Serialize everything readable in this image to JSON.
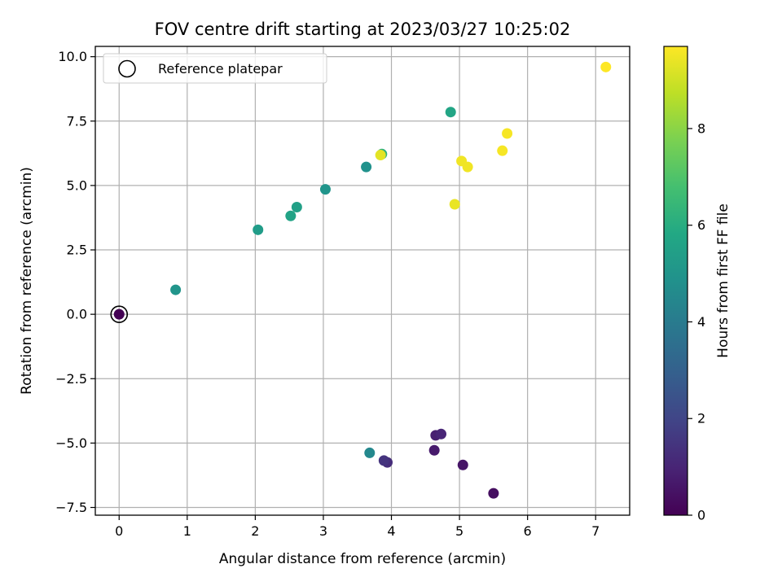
{
  "chart_data": {
    "type": "scatter",
    "title": "FOV centre drift starting at 2023/03/27 10:25:02",
    "xlabel": "Angular distance from reference (arcmin)",
    "ylabel": "Rotation from reference (arcmin)",
    "xlim": [
      -0.35,
      7.5
    ],
    "ylim": [
      -7.8,
      10.4
    ],
    "xticks": [
      0,
      1,
      2,
      3,
      4,
      5,
      6,
      7
    ],
    "xtick_labels": [
      "0",
      "1",
      "2",
      "3",
      "4",
      "5",
      "6",
      "7"
    ],
    "yticks": [
      -7.5,
      -5.0,
      -2.5,
      0.0,
      2.5,
      5.0,
      7.5,
      10.0
    ],
    "ytick_labels": [
      "−7.5",
      "−5.0",
      "−2.5",
      "0.0",
      "2.5",
      "5.0",
      "7.5",
      "10.0"
    ],
    "grid": true,
    "colormap": "viridis",
    "colorbar": {
      "label": "Hours from first FF file",
      "range": [
        0,
        9.7
      ],
      "ticks": [
        0,
        2,
        4,
        6,
        8
      ],
      "tick_labels": [
        "0",
        "2",
        "4",
        "6",
        "8"
      ]
    },
    "legend": {
      "placement": "top-left",
      "entries": [
        {
          "label": "Reference platepar",
          "marker": "open-circle"
        }
      ]
    },
    "reference_point": {
      "x": 0,
      "y": 0
    },
    "points": [
      {
        "x": 0.0,
        "y": 0.0,
        "hours": 0.0
      },
      {
        "x": 5.5,
        "y": -6.95,
        "hours": 0.35
      },
      {
        "x": 5.05,
        "y": -5.85,
        "hours": 0.55
      },
      {
        "x": 4.63,
        "y": -5.28,
        "hours": 0.7
      },
      {
        "x": 4.65,
        "y": -4.7,
        "hours": 0.85
      },
      {
        "x": 4.73,
        "y": -4.65,
        "hours": 1.0
      },
      {
        "x": 3.94,
        "y": -5.75,
        "hours": 1.25
      },
      {
        "x": 3.89,
        "y": -5.68,
        "hours": 1.45
      },
      {
        "x": 3.68,
        "y": -5.38,
        "hours": 4.5
      },
      {
        "x": 0.83,
        "y": 0.95,
        "hours": 5.0
      },
      {
        "x": 2.04,
        "y": 3.28,
        "hours": 5.3
      },
      {
        "x": 3.03,
        "y": 4.85,
        "hours": 5.0
      },
      {
        "x": 3.63,
        "y": 5.72,
        "hours": 4.9
      },
      {
        "x": 2.52,
        "y": 3.82,
        "hours": 5.6
      },
      {
        "x": 2.61,
        "y": 4.16,
        "hours": 5.5
      },
      {
        "x": 3.86,
        "y": 6.22,
        "hours": 6.2
      },
      {
        "x": 4.87,
        "y": 7.85,
        "hours": 5.7
      },
      {
        "x": 3.84,
        "y": 6.18,
        "hours": 9.3
      },
      {
        "x": 4.93,
        "y": 4.27,
        "hours": 9.4
      },
      {
        "x": 5.03,
        "y": 5.95,
        "hours": 9.5
      },
      {
        "x": 5.12,
        "y": 5.72,
        "hours": 9.5
      },
      {
        "x": 5.63,
        "y": 6.35,
        "hours": 9.6
      },
      {
        "x": 5.7,
        "y": 7.02,
        "hours": 9.6
      },
      {
        "x": 7.15,
        "y": 9.6,
        "hours": 9.7
      }
    ]
  }
}
